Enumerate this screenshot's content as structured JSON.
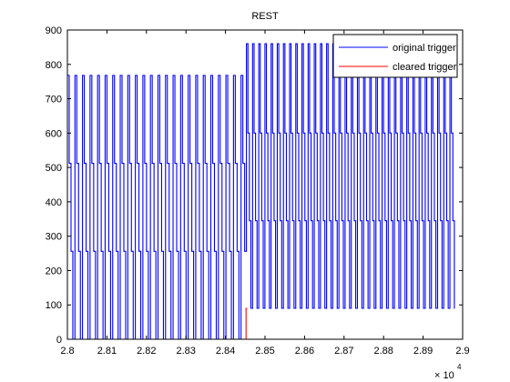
{
  "chart_data": {
    "type": "line",
    "title": "REST",
    "xlabel": "",
    "ylabel": "",
    "x_multiplier_label": "× 10",
    "x_multiplier_exponent": "4",
    "xlim": [
      2.8,
      2.9
    ],
    "ylim": [
      0,
      900
    ],
    "xticks": [
      "2.8",
      "2.81",
      "2.82",
      "2.83",
      "2.84",
      "2.85",
      "2.86",
      "2.87",
      "2.88",
      "2.89",
      "2.9"
    ],
    "yticks": [
      "0",
      "100",
      "200",
      "300",
      "400",
      "500",
      "600",
      "700",
      "800",
      "900"
    ],
    "grid": false,
    "legend_position": "top-right",
    "series": [
      {
        "name": "original trigger",
        "color": "#0000ff",
        "segments": [
          {
            "x_start": 2.8,
            "x_end": 2.8453,
            "period": 0.00191,
            "levels": [
              768,
              512,
              256,
              0
            ],
            "bottom_level": 0
          },
          {
            "x_start": 2.8453,
            "x_end": 2.898,
            "period": 0.00156,
            "levels": [
              860,
              600,
              345,
              90
            ],
            "bottom_level": 90
          }
        ]
      },
      {
        "name": "cleared trigger",
        "color": "#ff0000",
        "segments": [
          {
            "x_start": 2.8,
            "x_end": 2.8452,
            "value": 0
          },
          {
            "x_start": 2.8452,
            "x_end": 2.8455,
            "value": 90
          }
        ]
      }
    ]
  }
}
